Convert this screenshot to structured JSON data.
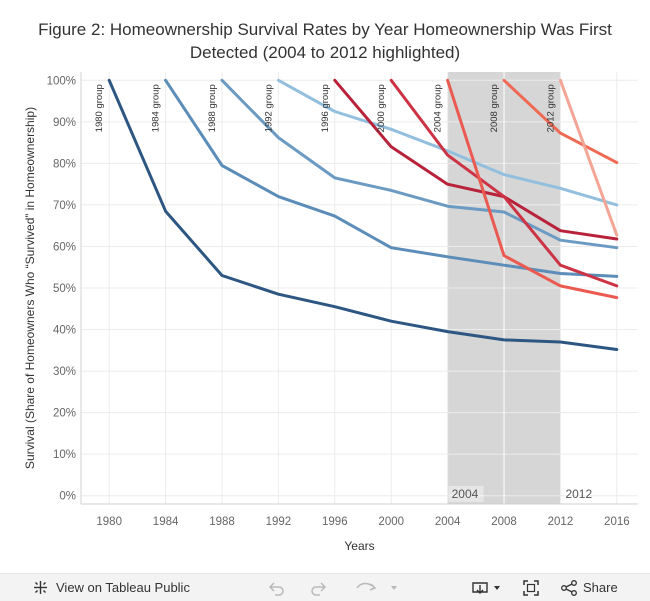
{
  "title": {
    "line1": "Figure 2: Homeownership Survival Rates by Year Homeownership Was First",
    "line2": "Detected (2004 to 2012 highlighted)"
  },
  "chart_data": {
    "type": "line",
    "ylabel": "Survival (Share of Homeowners Who “Survived” in Homeownership)",
    "xlabel": "Years",
    "xlim": [
      1978,
      2017.5
    ],
    "ylim": [
      -0.02,
      1.02
    ],
    "x_ticks": [
      "1980",
      "1984",
      "1988",
      "1992",
      "1996",
      "2000",
      "2004",
      "2008",
      "2012",
      "2016"
    ],
    "y_ticks": [
      "100%",
      "90%",
      "80%",
      "70%",
      "60%",
      "50%",
      "40%",
      "30%",
      "20%",
      "10%",
      "0%"
    ],
    "highlight": {
      "from": 2004,
      "to": 2012,
      "color": "#d6d6d6",
      "start_label": "2004",
      "end_label": "2012"
    },
    "grid": true,
    "series": [
      {
        "name": "1980 group",
        "color": "#2d5782",
        "x": [
          1980,
          1984,
          1988,
          1992,
          1996,
          2000,
          2004,
          2008,
          2012,
          2016
        ],
        "y": [
          1.0,
          0.685,
          0.53,
          0.485,
          0.455,
          0.42,
          0.395,
          0.375,
          0.37,
          0.352
        ]
      },
      {
        "name": "1984 group",
        "color": "#5b8db8",
        "x": [
          1984,
          1988,
          1992,
          1996,
          2000,
          2004,
          2008,
          2012,
          2016
        ],
        "y": [
          1.0,
          0.795,
          0.72,
          0.673,
          0.597,
          0.575,
          0.555,
          0.535,
          0.528
        ]
      },
      {
        "name": "1988 group",
        "color": "#6b9ac3",
        "x": [
          1988,
          1992,
          1996,
          2000,
          2004,
          2008,
          2012,
          2016
        ],
        "y": [
          1.0,
          0.862,
          0.765,
          0.735,
          0.697,
          0.683,
          0.615,
          0.597
        ]
      },
      {
        "name": "1992 group",
        "color": "#93bfdf",
        "x": [
          1992,
          1996,
          2000,
          2004,
          2008,
          2012,
          2016
        ],
        "y": [
          1.0,
          0.925,
          0.882,
          0.83,
          0.773,
          0.74,
          0.7
        ]
      },
      {
        "name": "1996 group",
        "color": "#b8223a",
        "x": [
          1996,
          2000,
          2004,
          2008,
          2012,
          2016
        ],
        "y": [
          1.0,
          0.84,
          0.75,
          0.72,
          0.638,
          0.618
        ]
      },
      {
        "name": "2000 group",
        "color": "#cc3344",
        "x": [
          2000,
          2004,
          2008,
          2012,
          2016
        ],
        "y": [
          1.0,
          0.82,
          0.72,
          0.555,
          0.505
        ]
      },
      {
        "name": "2004 group",
        "color": "#eb5a50",
        "x": [
          2004,
          2008,
          2012,
          2016
        ],
        "y": [
          1.0,
          0.578,
          0.505,
          0.477
        ]
      },
      {
        "name": "2008 group",
        "color": "#ee6a55",
        "x": [
          2008,
          2012,
          2016
        ],
        "y": [
          1.0,
          0.873,
          0.802
        ]
      },
      {
        "name": "2012 group",
        "color": "#f3a596",
        "x": [
          2012,
          2016
        ],
        "y": [
          1.0,
          0.627
        ]
      }
    ]
  },
  "toolbar": {
    "view_label": "View on Tableau Public",
    "share_label": "Share",
    "icons": [
      "tableau-logo-icon",
      "undo-icon",
      "redo-icon",
      "revert-icon",
      "download-icon",
      "fullscreen-icon",
      "share-icon"
    ]
  }
}
